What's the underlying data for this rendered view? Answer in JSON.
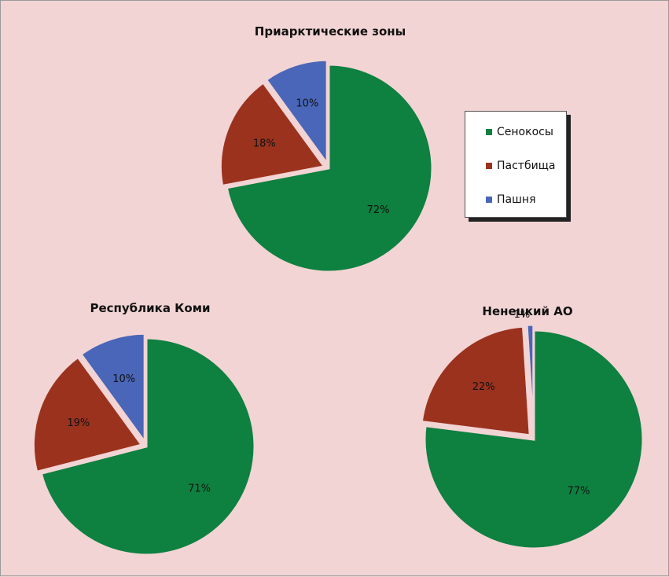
{
  "colors": {
    "hay": "#0e8040",
    "pasture": "#9b321e",
    "arable": "#4a66b8",
    "background": "#f2d4d4"
  },
  "legend": {
    "placement": "right",
    "items": [
      {
        "label": "Сенокосы",
        "color": "#0e8040"
      },
      {
        "label": "Пастбища",
        "color": "#9b321e"
      },
      {
        "label": "Пашня",
        "color": "#4a66b8"
      }
    ]
  },
  "chart_data": [
    {
      "type": "pie",
      "title": "Приарктические зоны",
      "categories": [
        "Сенокосы",
        "Пастбища",
        "Пашня"
      ],
      "values": [
        72,
        18,
        10
      ],
      "labels": [
        "72%",
        "18%",
        "10%"
      ],
      "exploded": true
    },
    {
      "type": "pie",
      "title": "Республика Коми",
      "categories": [
        "Сенокосы",
        "Пастбища",
        "Пашня"
      ],
      "values": [
        71,
        19,
        10
      ],
      "labels": [
        "71%",
        "19%",
        "10%"
      ],
      "exploded": true
    },
    {
      "type": "pie",
      "title": "Ненецкий АО",
      "categories": [
        "Сенокосы",
        "Пастбища",
        "Пашня"
      ],
      "values": [
        77,
        22,
        1
      ],
      "labels": [
        "77%",
        "22%",
        "1%"
      ],
      "exploded": true
    }
  ]
}
